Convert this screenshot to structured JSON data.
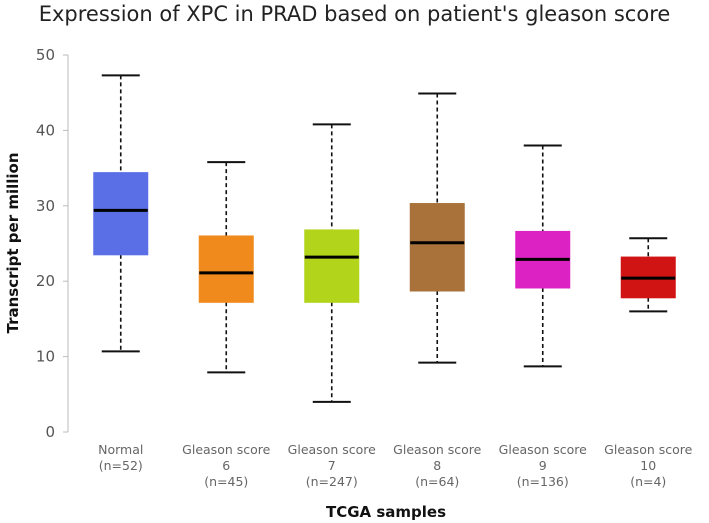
{
  "chart_data": {
    "type": "box",
    "title": "Expression of XPC in PRAD based on patient's gleason score",
    "xlabel": "TCGA samples",
    "ylabel": "Transcript per million",
    "ylim": [
      0,
      50
    ],
    "yticks": [
      0,
      10,
      20,
      30,
      40,
      50
    ],
    "grid": false,
    "categories": [
      {
        "lines": [
          "Normal",
          "(n=52)"
        ],
        "color": "#5a6ee6",
        "min": 10.7,
        "q1": 23.5,
        "median": 29.4,
        "q3": 34.4,
        "max": 47.3
      },
      {
        "lines": [
          "Gleason score",
          "6",
          "(n=45)"
        ],
        "color": "#f08a1c",
        "min": 7.9,
        "q1": 17.2,
        "median": 21.1,
        "q3": 26.0,
        "max": 35.8
      },
      {
        "lines": [
          "Gleason score",
          "7",
          "(n=247)"
        ],
        "color": "#b2d41a",
        "min": 4.0,
        "q1": 17.2,
        "median": 23.2,
        "q3": 26.8,
        "max": 40.8
      },
      {
        "lines": [
          "Gleason score",
          "8",
          "(n=64)"
        ],
        "color": "#a8723a",
        "min": 9.2,
        "q1": 18.7,
        "median": 25.1,
        "q3": 30.3,
        "max": 44.9
      },
      {
        "lines": [
          "Gleason score",
          "9",
          "(n=136)"
        ],
        "color": "#dd22c4",
        "min": 8.7,
        "q1": 19.1,
        "median": 22.9,
        "q3": 26.6,
        "max": 38.0
      },
      {
        "lines": [
          "Gleason score",
          "10",
          "(n=4)"
        ],
        "color": "#d01414",
        "min": 16.0,
        "q1": 17.8,
        "median": 20.4,
        "q3": 23.2,
        "max": 25.7
      }
    ]
  }
}
